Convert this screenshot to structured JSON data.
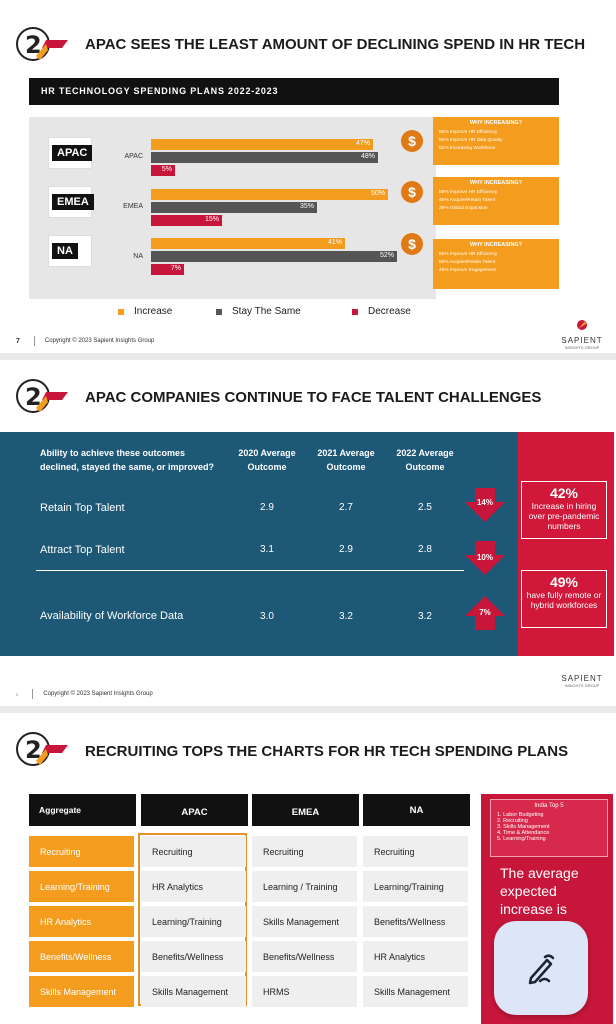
{
  "colors": {
    "orange": "#f39c1e",
    "grey": "#555555",
    "crimson": "#c8163b",
    "teal": "#1d5876"
  },
  "slide1": {
    "title": "APAC SEES THE LEAST AMOUNT OF DECLINING SPEND IN HR TECH",
    "header": "HR TECHNOLOGY SPENDING PLANS 2022-2023",
    "regions": [
      {
        "tag": "APAC",
        "label": "APAC",
        "increase": 47,
        "same": 48,
        "decrease": 5,
        "increase_label": "47%",
        "same_label": "48%",
        "decrease_label": "5%",
        "why_title": "WHY INCREASING?",
        "why": [
          "88% Improve HR Efficiency",
          "56% Improve HR data Quality",
          "52% Increasing Workforce"
        ]
      },
      {
        "tag": "EMEA",
        "label": "EMEA",
        "increase": 50,
        "same": 35,
        "decrease": 15,
        "increase_label": "50%",
        "same_label": "35%",
        "decrease_label": "15%",
        "why_title": "WHY INCREASING?",
        "why": [
          "58% Improve HR Efficiency",
          "45% Acquire/Retain Talent",
          "39% Global Expansion"
        ]
      },
      {
        "tag": "NA",
        "label": "NA",
        "increase": 41,
        "same": 52,
        "decrease": 7,
        "increase_label": "41%",
        "same_label": "52%",
        "decrease_label": "7%",
        "why_title": "WHY INCREASING?",
        "why": [
          "65% Improve HR Efficiency",
          "50% Acquire/Retain Talent",
          "49% Improve Engagement"
        ]
      }
    ],
    "legend": [
      "Increase",
      "Stay The Same",
      "Decrease"
    ],
    "page_number": "7",
    "copyright": "Copyright © 2023 Sapient Insights Group",
    "dollar_icon": "$"
  },
  "slide2": {
    "title": "APAC COMPANIES CONTINUE TO FACE TALENT CHALLENGES",
    "question": "Ability to achieve these outcomes declined, stayed the same, or improved?",
    "columns": [
      "2020 Average Outcome",
      "2021 Average Outcome",
      "2022 Average Outcome"
    ],
    "rows": [
      {
        "label": "Retain Top Talent",
        "values": [
          "2.9",
          "2.7",
          "2.5"
        ],
        "change": "14%"
      },
      {
        "label": "Attract Top Talent",
        "values": [
          "3.1",
          "2.9",
          "2.8"
        ],
        "change": "10%"
      },
      {
        "label": "Availability of Workforce Data",
        "values": [
          "3.0",
          "3.2",
          "3.2"
        ],
        "change": "7%"
      }
    ],
    "stats": [
      {
        "big": "42%",
        "small": "Increase in hiring over pre-pandemic numbers"
      },
      {
        "big": "49%",
        "small": "have fully remote or hybrid workforces"
      }
    ],
    "page_number": "8",
    "copyright": "Copyright © 2023 Sapient Insights Group"
  },
  "slide3": {
    "title": "RECRUITING TOPS THE CHARTS FOR HR TECH SPENDING PLANS",
    "headers": [
      "Aggregate",
      "APAC",
      "EMEA",
      "NA"
    ],
    "aggregate": [
      "Recruiting",
      "Learning/Training",
      "HR Analytics",
      "Benefits/Wellness",
      "Skills Management"
    ],
    "apac": [
      "Recruiting",
      "HR Analytics",
      "Learning/Training",
      "Benefits/Wellness",
      "Skills Management"
    ],
    "emea": [
      "Recruiting",
      "Learning / Training",
      "Skills Management",
      "Benefits/Wellness",
      "HRMS"
    ],
    "na": [
      "Recruiting",
      "Learning/Training",
      "Benefits/Wellness",
      "HR Analytics",
      "Skills Management"
    ],
    "india_title": "India  Top 5",
    "india": [
      "Labor Budgeting",
      "Recruiting",
      "Skills Management",
      "Time & Attendance",
      "Learning/Training"
    ],
    "avg_text": "The average expected increase is"
  },
  "sapient": {
    "name": "SAPIENT",
    "sub": "INSIGHTS GROUP"
  }
}
